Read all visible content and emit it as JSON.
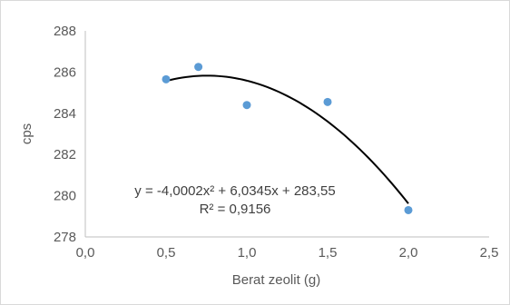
{
  "chart_data": {
    "type": "scatter",
    "title": "",
    "xlabel": "Berat  zeolit (g)",
    "ylabel": "cps",
    "xlim": [
      0.0,
      2.5
    ],
    "ylim": [
      278,
      288
    ],
    "xticks": [
      0.0,
      0.5,
      1.0,
      1.5,
      2.0,
      2.5
    ],
    "xtick_labels": [
      "0,0",
      "0,5",
      "1,0",
      "1,5",
      "2,0",
      "2,5"
    ],
    "yticks": [
      278,
      280,
      282,
      284,
      286,
      288
    ],
    "ytick_labels": [
      "278",
      "280",
      "282",
      "284",
      "286",
      "288"
    ],
    "grid": false,
    "legend": "none",
    "series": [
      {
        "x": [
          0.5,
          0.7,
          1.0,
          1.5,
          2.0
        ],
        "y": [
          285.65,
          286.25,
          284.4,
          284.55,
          279.3
        ],
        "color": "#5b9bd5"
      }
    ],
    "trendline": {
      "type": "polynomial",
      "order": 2,
      "coefficients": [
        -4.0002,
        6.0345,
        283.55
      ],
      "x_range": [
        0.5,
        2.0
      ],
      "color": "#000000"
    },
    "annotations": {
      "equation": "y = -4,0002x² + 6,0345x + 283,55",
      "r_squared": "R² = 0,9156"
    }
  }
}
